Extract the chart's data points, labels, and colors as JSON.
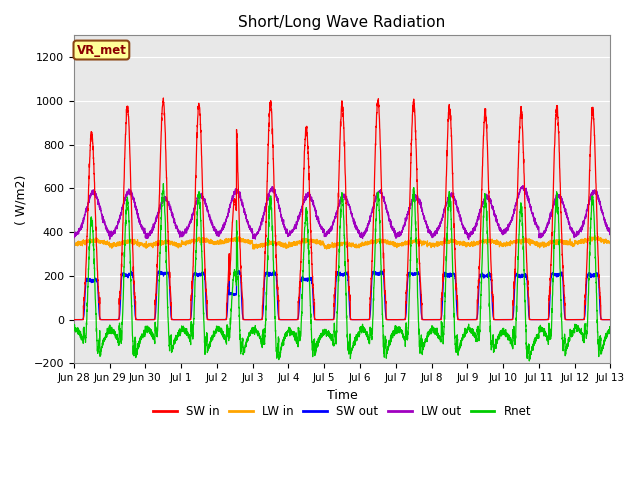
{
  "title": "Short/Long Wave Radiation",
  "xlabel": "Time",
  "ylabel": "( W/m2)",
  "ylim": [
    -200,
    1300
  ],
  "yticks": [
    -200,
    0,
    200,
    400,
    600,
    800,
    1000,
    1200
  ],
  "legend_label": "VR_met",
  "series_colors": {
    "SW in": "#ff0000",
    "LW in": "#ffa500",
    "SW out": "#0000ff",
    "LW out": "#a000c0",
    "Rnet": "#00cc00"
  },
  "bg_color": "#e8e8e8",
  "fig_bg": "#ffffff",
  "n_days": 15,
  "n_points_per_day": 288,
  "xticklabels": [
    "Jun 28",
    "Jun 29",
    "Jun 30",
    "Jul 1",
    "Jul 2",
    "Jul 3",
    "Jul 4",
    "Jul 5",
    "Jul 6",
    "Jul 7",
    "Jul 8",
    "Jul 9",
    "Jul 10",
    "Jul 11",
    "Jul 12",
    "Jul 13"
  ]
}
